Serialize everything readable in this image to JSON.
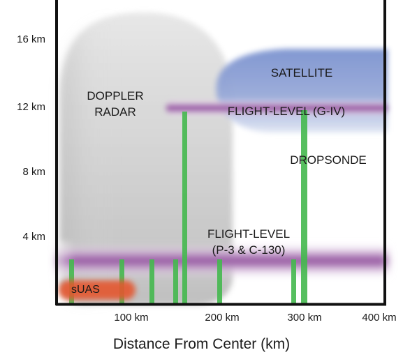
{
  "diagram": {
    "y_axis": {
      "ticks": [
        "16 km",
        "12 km",
        "8 km",
        "4 km"
      ]
    },
    "x_axis": {
      "ticks": [
        "100 km",
        "200 km",
        "300 km",
        "400 km"
      ],
      "title": "Distance From Center (km)"
    },
    "regions": {
      "doppler": {
        "line1": "DOPPLER",
        "line2": "RADAR"
      },
      "satellite": "SATELLITE",
      "flight_level_giv": "FLIGHT-LEVEL (G-IV)",
      "dropsonde": "DROPSONDE",
      "flight_level_low": {
        "line1": "FLIGHT-LEVEL",
        "line2": "(P-3 & C-130)"
      },
      "suas": "sUAS"
    },
    "colors": {
      "doppler": "#c9c9c9",
      "satellite": "#6e86c6",
      "flight_level": "#8b3a98",
      "dropsonde": "#44b84e",
      "suas": "#e4572e",
      "axis": "#111111"
    }
  }
}
